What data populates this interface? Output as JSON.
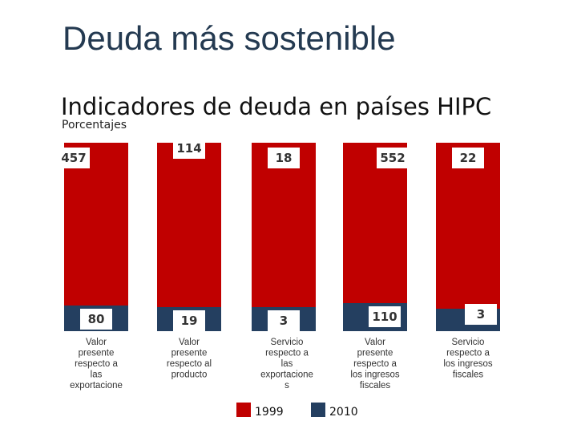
{
  "slide": {
    "title": "Deuda más sostenible"
  },
  "chart_data": {
    "type": "bar",
    "title": "Indicadores de deuda en países HIPC",
    "subtitle": "Porcentajes",
    "categories": [
      [
        "Valor",
        "presente",
        "respecto a",
        "las",
        "exportacione"
      ],
      [
        "Valor",
        "presente",
        "respecto al",
        "producto"
      ],
      [
        "Servicio",
        "respecto a",
        "las",
        "exportacione",
        "s"
      ],
      [
        "Valor",
        "presente",
        "respecto a",
        "los ingresos",
        "fiscales"
      ],
      [
        "Servicio",
        "respecto a",
        "los ingresos",
        "fiscales"
      ]
    ],
    "series": [
      {
        "name": "1999",
        "color": "#c00000",
        "values": [
          457,
          114,
          18,
          552,
          22
        ]
      },
      {
        "name": "2010",
        "color": "#243f60",
        "values": [
          80,
          19,
          3,
          110,
          3
        ]
      }
    ],
    "xlabel": "",
    "ylabel": "",
    "legend": "bottom-center",
    "grid": false
  }
}
